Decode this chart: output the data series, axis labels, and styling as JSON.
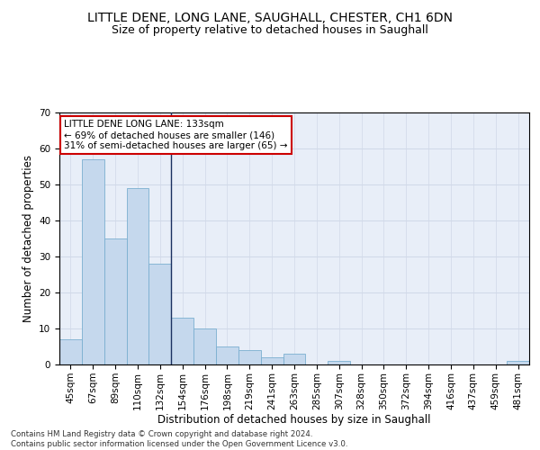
{
  "title1": "LITTLE DENE, LONG LANE, SAUGHALL, CHESTER, CH1 6DN",
  "title2": "Size of property relative to detached houses in Saughall",
  "xlabel": "Distribution of detached houses by size in Saughall",
  "ylabel": "Number of detached properties",
  "footer": "Contains HM Land Registry data © Crown copyright and database right 2024.\nContains public sector information licensed under the Open Government Licence v3.0.",
  "categories": [
    "45sqm",
    "67sqm",
    "89sqm",
    "110sqm",
    "132sqm",
    "154sqm",
    "176sqm",
    "198sqm",
    "219sqm",
    "241sqm",
    "263sqm",
    "285sqm",
    "307sqm",
    "328sqm",
    "350sqm",
    "372sqm",
    "394sqm",
    "416sqm",
    "437sqm",
    "459sqm",
    "481sqm"
  ],
  "values": [
    7,
    57,
    35,
    49,
    28,
    13,
    10,
    5,
    4,
    2,
    3,
    0,
    1,
    0,
    0,
    0,
    0,
    0,
    0,
    0,
    1
  ],
  "bar_color": "#c5d8ed",
  "bar_edge_color": "#7aafd0",
  "vline_x": 4.5,
  "vline_color": "#1a3060",
  "annotation_text": "LITTLE DENE LONG LANE: 133sqm\n← 69% of detached houses are smaller (146)\n31% of semi-detached houses are larger (65) →",
  "annotation_box_color": "#ffffff",
  "annotation_box_edge": "#cc0000",
  "ylim": [
    0,
    70
  ],
  "yticks": [
    0,
    10,
    20,
    30,
    40,
    50,
    60,
    70
  ],
  "grid_color": "#d0d8e8",
  "background_color": "#e8eef8",
  "title1_fontsize": 10,
  "title2_fontsize": 9,
  "xlabel_fontsize": 8.5,
  "ylabel_fontsize": 8.5,
  "tick_fontsize": 7.5,
  "ann_fontsize": 7.5
}
